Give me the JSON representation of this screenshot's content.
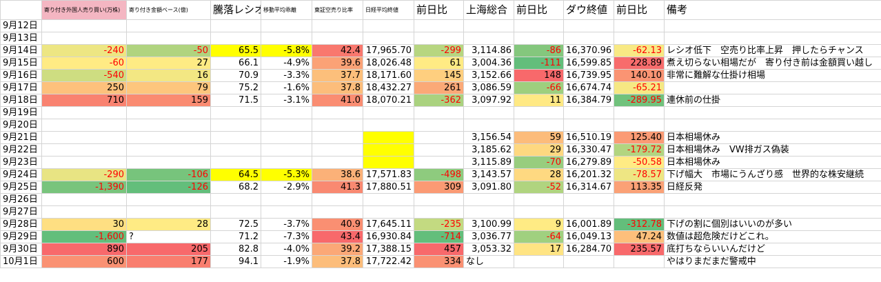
{
  "table": {
    "headers": [
      null,
      "寄り付き外国人売り買い(万株)",
      "寄り付き金額ベース(億)",
      "騰落レシオ",
      "移動平均乖離",
      "東証空売り比率",
      "日経平均終値",
      "前日比",
      "上海総合",
      "前日比",
      "ダウ終値",
      "前日比",
      "備考"
    ],
    "rows": [
      [
        "9月12日",
        null,
        null,
        null,
        null,
        null,
        null,
        null,
        null,
        null,
        null,
        null,
        null
      ],
      [
        "9月13日",
        null,
        null,
        null,
        null,
        null,
        null,
        null,
        null,
        null,
        null,
        null,
        null
      ],
      [
        "9月14日",
        "-240",
        "-50",
        "65.5",
        "-5.8%",
        "42.4",
        "17,965.70",
        "-299",
        "3,114.86",
        "-86",
        "16,370.96",
        "-62.13",
        "レシオ低下　空売り比率上昇　押したらチャンス"
      ],
      [
        "9月15日",
        "-60",
        "27",
        "66.1",
        "-4.9%",
        "39.6",
        "18,026.48",
        "61",
        "3,004.36",
        "-111",
        "16,599.85",
        "228.89",
        "煮え切らない相場だが　寄り付き前は金額買い越し"
      ],
      [
        "9月16日",
        "-540",
        "16",
        "70.9",
        "-3.3%",
        "37.7",
        "18,171.60",
        "145",
        "3,152.66",
        "148",
        "16,739.95",
        "140.10",
        "非常に難解な仕掛け相場"
      ],
      [
        "9月17日",
        "250",
        "79",
        "75.2",
        "-1.6%",
        "37.8",
        "18,432.27",
        "261",
        "3,086.59",
        "-66",
        "16,674.74",
        "-65.21",
        null
      ],
      [
        "9月18日",
        "710",
        "159",
        "71.5",
        "-3.1%",
        "41.0",
        "18,070.21",
        "-362",
        "3,097.92",
        "11",
        "16,384.79",
        "-289.95",
        "連休前の仕掛"
      ],
      [
        "9月19日",
        null,
        null,
        null,
        null,
        null,
        null,
        null,
        null,
        null,
        null,
        null,
        null
      ],
      [
        "9月20日",
        null,
        null,
        null,
        null,
        null,
        null,
        null,
        null,
        null,
        null,
        null,
        null
      ],
      [
        "9月21日",
        null,
        null,
        null,
        null,
        null,
        null,
        null,
        "3,156.54",
        "59",
        "16,510.19",
        "125.40",
        "日本相場休み"
      ],
      [
        "9月22日",
        null,
        null,
        null,
        null,
        null,
        null,
        null,
        "3,185.62",
        "29",
        "16,330.47",
        "-179.72",
        "日本相場休み　VW排ガス偽装"
      ],
      [
        "9月23日",
        null,
        null,
        null,
        null,
        null,
        null,
        null,
        "3,115.89",
        "-70",
        "16,279.89",
        "-50.58",
        "日本相場休み"
      ],
      [
        "9月24日",
        "-290",
        "-106",
        "64.5",
        "-5.3%",
        "38.6",
        "17,571.83",
        "-498",
        "3,143.57",
        "28",
        "16,201.32",
        "-78.57",
        "下げ幅大　市場にうんざり感　世界的な株安継続"
      ],
      [
        "9月25日",
        "-1,390",
        "-126",
        "68.2",
        "-2.9%",
        "41.3",
        "17,880.51",
        "309",
        "3,091.80",
        "-52",
        "16,314.67",
        "113.35",
        "日経反発"
      ],
      [
        "9月26日",
        null,
        null,
        null,
        null,
        null,
        null,
        null,
        null,
        null,
        null,
        null,
        null
      ],
      [
        "9月27日",
        null,
        null,
        null,
        null,
        null,
        null,
        null,
        null,
        null,
        null,
        null,
        null
      ],
      [
        "9月28日",
        "30",
        "28",
        "72.5",
        "-3.7%",
        "40.9",
        "17,645.11",
        "-235",
        "3,100.99",
        "9",
        "16,001.89",
        "-312.78",
        "下げの割に個別はいいのが多い"
      ],
      [
        "9月29日",
        "-1,600",
        "?",
        "71.2",
        "-7.3%",
        "43.4",
        "16,930.84",
        "-714",
        "3,036.77",
        "-64",
        "16,049.13",
        "47.24",
        "数値は超危険だけどこれ。"
      ],
      [
        "9月30日",
        "890",
        "205",
        "82.8",
        "-4.0%",
        "39.2",
        "17,388.15",
        "457",
        "3,053.32",
        "17",
        "16,284.70",
        "235.57",
        "底打ちならいいんだけど"
      ],
      [
        "10月1日",
        "600",
        "177",
        "94.1",
        "-1.9%",
        "37.8",
        "17,722.42",
        "334",
        "なし",
        null,
        null,
        null,
        "やはりまだまだ警戒中"
      ]
    ]
  }
}
